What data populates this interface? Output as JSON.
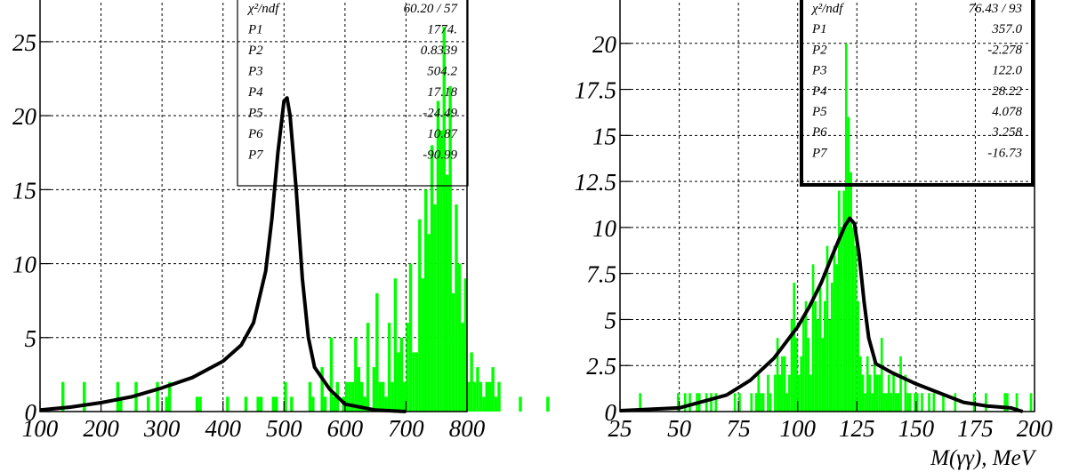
{
  "chart_data": [
    {
      "type": "bar",
      "title": "",
      "xlabel": "",
      "ylabel": "",
      "xlim": [
        100,
        800
      ],
      "ylim": [
        0,
        28
      ],
      "x_ticks": [
        "100",
        "200",
        "300",
        "400",
        "500",
        "600",
        "700",
        "800"
      ],
      "y_ticks": [
        "0",
        "5",
        "10",
        "15",
        "20",
        "25"
      ],
      "grid": true,
      "histogram_color": "#00ff00",
      "fit_color": "#000000",
      "histogram": {
        "x_start": 100,
        "bin_width": 5,
        "values": [
          0,
          0,
          0,
          0,
          0,
          0,
          0,
          2,
          0,
          0,
          0,
          0,
          0,
          0,
          2,
          0,
          0,
          0,
          0,
          0,
          0,
          0,
          0,
          0,
          0,
          2,
          1,
          0,
          0,
          0,
          0,
          2,
          0,
          0,
          0,
          1,
          0,
          0,
          2,
          0,
          0,
          1,
          2,
          0,
          0,
          0,
          0,
          0,
          0,
          0,
          0,
          1,
          1,
          0,
          0,
          0,
          0,
          0,
          0,
          0,
          0,
          1,
          0,
          0,
          0,
          0,
          0,
          1,
          0,
          0,
          0,
          1,
          1,
          0,
          0,
          0,
          1,
          1,
          0,
          0,
          2,
          0,
          1,
          0,
          0,
          0,
          0,
          0,
          2,
          1,
          0,
          0,
          3,
          1,
          0,
          5,
          1,
          2,
          0,
          1,
          2,
          2,
          2,
          5,
          3,
          2,
          1,
          6,
          0,
          3,
          8,
          2,
          2,
          1,
          6,
          2,
          9,
          4,
          5,
          2,
          6,
          10,
          4,
          4,
          13,
          9,
          15,
          12,
          18,
          14,
          21,
          19,
          26,
          16,
          22,
          8,
          14,
          10,
          6,
          9,
          2,
          4,
          2,
          3,
          2,
          1,
          2,
          2,
          3,
          1,
          2,
          0,
          0,
          0,
          0,
          0,
          0,
          1,
          0,
          0,
          0,
          0,
          0,
          0,
          0,
          0,
          1,
          0,
          0,
          0,
          0,
          0,
          0,
          0,
          0,
          0,
          0,
          0,
          0,
          0,
          0,
          0,
          0,
          0,
          0,
          0,
          0,
          0,
          0,
          0,
          0,
          0,
          0,
          0,
          0,
          0,
          0,
          0,
          0,
          0,
          0,
          0,
          0,
          0,
          0,
          0,
          0,
          0,
          0,
          0,
          0,
          0,
          0,
          0,
          0,
          0,
          0,
          0,
          0,
          0,
          0,
          0,
          0,
          0,
          0,
          0,
          0,
          0,
          0,
          0,
          0,
          0,
          0,
          0,
          0,
          0,
          0,
          0
        ]
      },
      "fit": {
        "x": [
          100,
          150,
          200,
          250,
          300,
          350,
          400,
          430,
          450,
          470,
          480,
          490,
          500,
          505,
          510,
          520,
          530,
          540,
          550,
          575,
          600,
          650,
          700
        ],
        "y": [
          0.1,
          0.3,
          0.6,
          1.0,
          1.6,
          2.3,
          3.4,
          4.5,
          6.0,
          9.5,
          13.0,
          17.5,
          21.0,
          21.2,
          20.0,
          15.0,
          9.0,
          5.0,
          3.0,
          1.5,
          0.5,
          0.1,
          0.0
        ]
      },
      "stats": [
        {
          "label": "χ²/ndf",
          "value": "60.20  /   57"
        },
        {
          "label": "P1",
          "value": "1774."
        },
        {
          "label": "P2",
          "value": "0.8339"
        },
        {
          "label": "P3",
          "value": "504.2"
        },
        {
          "label": "P4",
          "value": "17.18"
        },
        {
          "label": "P5",
          "value": "-24.49"
        },
        {
          "label": "P6",
          "value": "10.87"
        },
        {
          "label": "P7",
          "value": "-90.99"
        }
      ]
    },
    {
      "type": "bar",
      "title": "",
      "xlabel": "M(γγ), MeV",
      "ylabel": "",
      "xlim": [
        25,
        200
      ],
      "ylim": [
        0,
        22.5
      ],
      "x_ticks": [
        "25",
        "50",
        "75",
        "100",
        "125",
        "150",
        "175",
        "200"
      ],
      "y_ticks": [
        "0",
        "2.5",
        "5",
        "7.5",
        "10",
        "12.5",
        "15",
        "17.5",
        "20"
      ],
      "grid": true,
      "histogram_color": "#00ff00",
      "fit_color": "#000000",
      "histogram": {
        "x_start": 25,
        "bin_width": 1,
        "values": [
          0,
          0,
          0,
          0,
          0,
          0,
          0,
          0,
          1,
          0,
          0,
          0,
          0,
          0,
          0,
          0,
          0,
          0,
          0,
          0,
          0,
          0,
          0,
          0,
          1,
          0,
          0,
          1,
          0,
          1,
          0,
          0,
          1,
          1,
          0,
          0,
          1,
          0,
          1,
          0,
          1,
          0,
          0,
          0,
          0,
          0,
          0,
          0,
          1,
          0,
          1,
          0,
          0,
          0,
          0,
          1,
          0,
          1,
          2,
          1,
          1,
          0,
          2,
          1,
          0,
          2,
          4,
          2,
          3,
          3,
          1,
          2,
          5,
          7,
          4,
          2,
          3,
          5,
          6,
          4,
          2,
          8,
          6,
          5,
          7,
          4,
          6,
          9,
          5,
          7,
          9,
          8,
          12,
          10,
          12,
          20,
          16,
          13,
          10,
          9,
          6,
          3,
          2,
          1,
          3,
          2,
          1,
          3,
          2,
          2,
          4,
          1,
          1,
          2,
          1,
          2,
          1,
          1,
          3,
          0,
          2,
          1,
          1,
          0,
          1,
          1,
          0,
          1,
          0,
          0,
          1,
          0,
          1,
          0,
          0,
          0,
          1,
          0,
          0,
          0,
          0,
          1,
          0,
          0,
          0,
          0,
          0,
          0,
          0,
          1,
          0,
          0,
          0,
          0,
          1,
          0,
          0,
          0,
          0,
          0,
          0,
          0,
          1,
          1,
          0,
          0,
          0,
          1,
          0,
          0,
          0,
          0,
          0,
          1,
          0,
          0
        ]
      },
      "fit": {
        "x": [
          25,
          50,
          70,
          80,
          90,
          100,
          105,
          110,
          115,
          118,
          120,
          122,
          124,
          126,
          128,
          130,
          133,
          140,
          150,
          160,
          170,
          180,
          190,
          195
        ],
        "y": [
          0.05,
          0.2,
          0.9,
          1.7,
          2.9,
          4.6,
          5.7,
          7.0,
          8.6,
          9.5,
          10.1,
          10.5,
          10.2,
          8.5,
          6.0,
          4.0,
          2.6,
          2.1,
          1.5,
          1.0,
          0.5,
          0.3,
          0.2,
          0.0
        ]
      },
      "stats": [
        {
          "label": "χ²/ndf",
          "value": "76.43  /   93"
        },
        {
          "label": "P1",
          "value": "357.0"
        },
        {
          "label": "P2",
          "value": "-2.278"
        },
        {
          "label": "P3",
          "value": "122.0"
        },
        {
          "label": "P4",
          "value": "28.22"
        },
        {
          "label": "P5",
          "value": "4.078"
        },
        {
          "label": "P6",
          "value": "3.258"
        },
        {
          "label": "P7",
          "value": "-16.73"
        }
      ]
    }
  ]
}
